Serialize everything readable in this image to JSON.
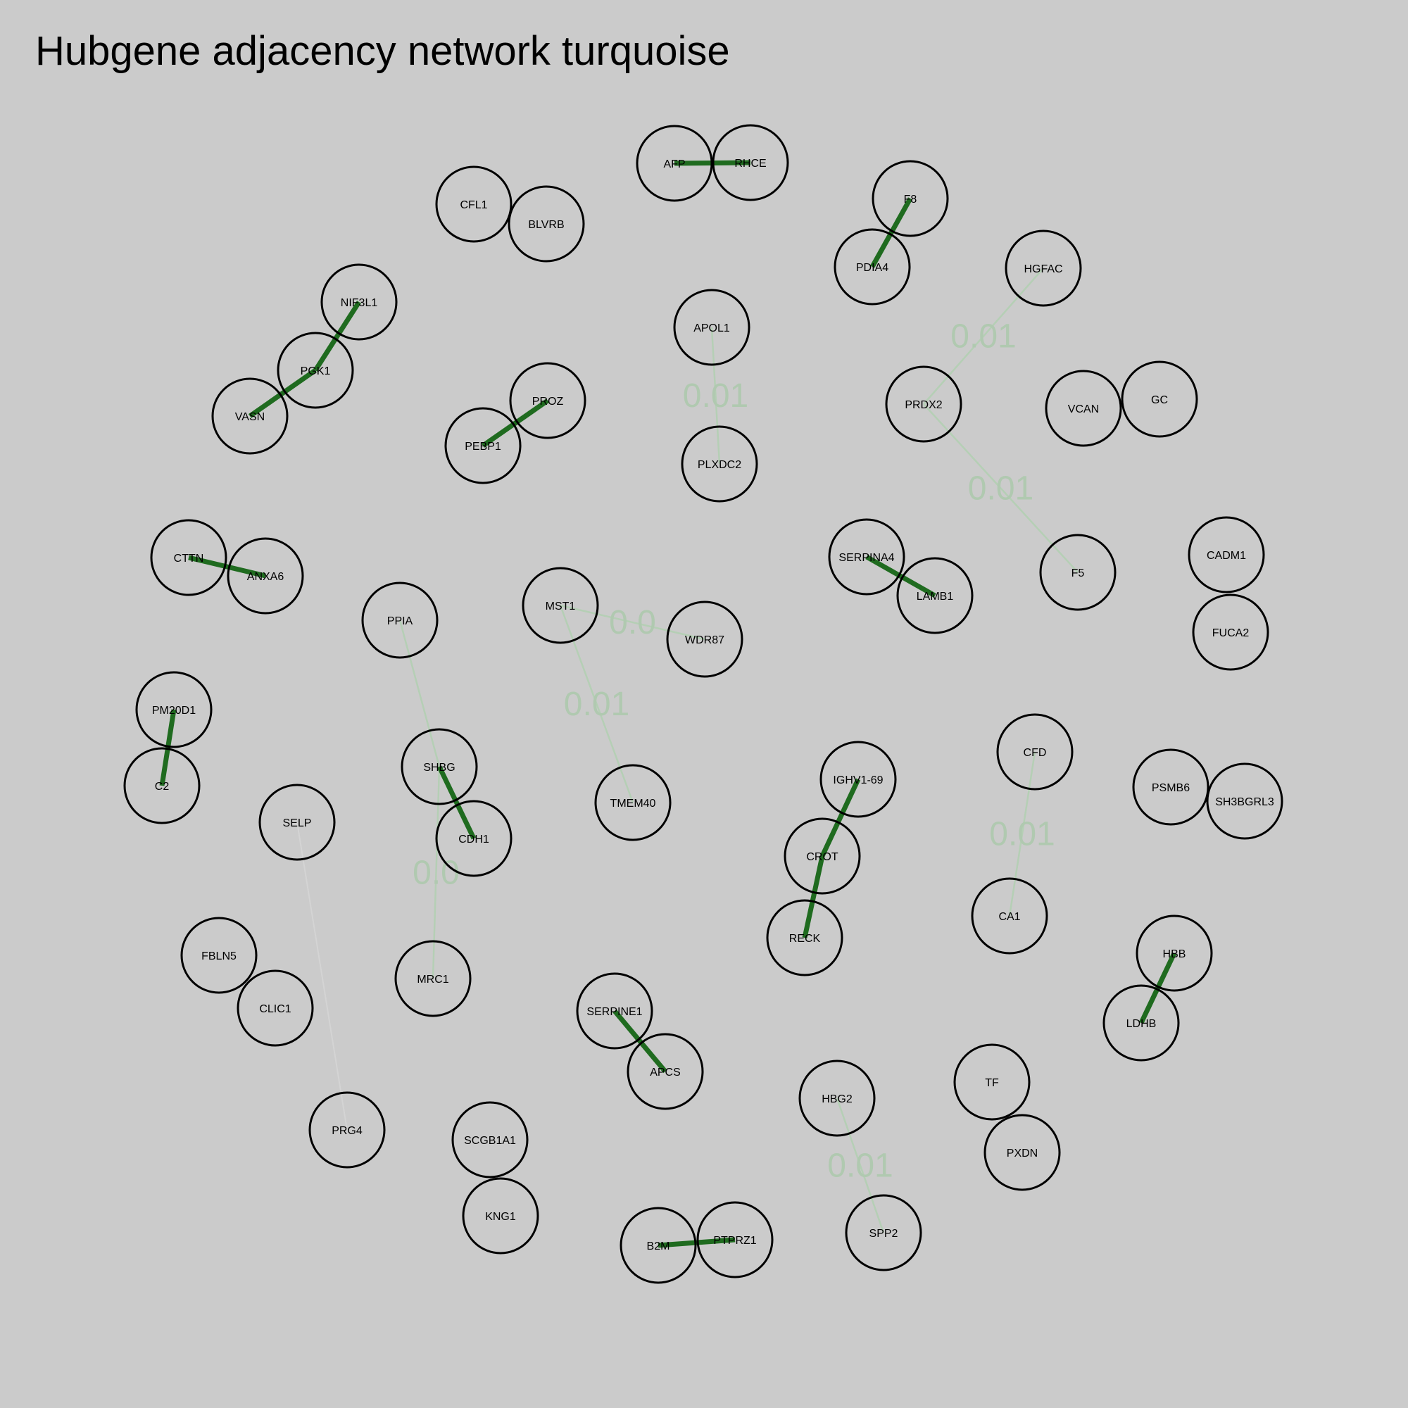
{
  "title": "Hubgene adjacency network turquoise",
  "colors": {
    "background": "#cbcbcb",
    "weak_edge": "#b5cfb5",
    "strong_edge": "#1f6b1f",
    "node_stroke": "#000000",
    "edge_label": "#b0c9b0"
  },
  "nodes": [
    {
      "id": "AFP",
      "label": "AFP"
    },
    {
      "id": "RHCE",
      "label": "RHCE"
    },
    {
      "id": "CFL1",
      "label": "CFL1"
    },
    {
      "id": "BLVRB",
      "label": "BLVRB"
    },
    {
      "id": "F8",
      "label": "F8"
    },
    {
      "id": "PDIA4",
      "label": "PDIA4"
    },
    {
      "id": "HGFAC",
      "label": "HGFAC"
    },
    {
      "id": "NIF3L1",
      "label": "NIF3L1"
    },
    {
      "id": "PGK1",
      "label": "PGK1"
    },
    {
      "id": "VASN",
      "label": "VASN"
    },
    {
      "id": "APOL1",
      "label": "APOL1"
    },
    {
      "id": "PROZ",
      "label": "PROZ"
    },
    {
      "id": "PEBP1",
      "label": "PEBP1"
    },
    {
      "id": "PLXDC2",
      "label": "PLXDC2"
    },
    {
      "id": "PRDX2",
      "label": "PRDX2"
    },
    {
      "id": "VCAN",
      "label": "VCAN"
    },
    {
      "id": "GC",
      "label": "GC"
    },
    {
      "id": "CTTN",
      "label": "CTTN"
    },
    {
      "id": "ANXA6",
      "label": "ANXA6"
    },
    {
      "id": "SERPINA4",
      "label": "SERPINA4"
    },
    {
      "id": "LAMB1",
      "label": "LAMB1"
    },
    {
      "id": "F5",
      "label": "F5"
    },
    {
      "id": "CADM1",
      "label": "CADM1"
    },
    {
      "id": "FUCA2",
      "label": "FUCA2"
    },
    {
      "id": "PPIA",
      "label": "PPIA"
    },
    {
      "id": "MST1",
      "label": "MST1"
    },
    {
      "id": "WDR87",
      "label": "WDR87"
    },
    {
      "id": "PM20D1",
      "label": "PM20D1"
    },
    {
      "id": "C2",
      "label": "C2"
    },
    {
      "id": "SHBG",
      "label": "SHBG"
    },
    {
      "id": "CDH1",
      "label": "CDH1"
    },
    {
      "id": "TMEM40",
      "label": "TMEM40"
    },
    {
      "id": "IGHV1-69",
      "label": "IGHV1-69"
    },
    {
      "id": "CFD",
      "label": "CFD"
    },
    {
      "id": "PSMB6",
      "label": "PSMB6"
    },
    {
      "id": "SH3BGRL3",
      "label": "SH3BGRL3"
    },
    {
      "id": "SELP",
      "label": "SELP"
    },
    {
      "id": "CROT",
      "label": "CROT"
    },
    {
      "id": "CA1",
      "label": "CA1"
    },
    {
      "id": "RECK",
      "label": "RECK"
    },
    {
      "id": "FBLN5",
      "label": "FBLN5"
    },
    {
      "id": "CLIC1",
      "label": "CLIC1"
    },
    {
      "id": "MRC1",
      "label": "MRC1"
    },
    {
      "id": "HBB",
      "label": "HBB"
    },
    {
      "id": "LDHB",
      "label": "LDHB"
    },
    {
      "id": "SERPINE1",
      "label": "SERPINE1"
    },
    {
      "id": "APCS",
      "label": "APCS"
    },
    {
      "id": "TF",
      "label": "TF"
    },
    {
      "id": "HBG2",
      "label": "HBG2"
    },
    {
      "id": "PXDN",
      "label": "PXDN"
    },
    {
      "id": "PRG4",
      "label": "PRG4"
    },
    {
      "id": "SCGB1A1",
      "label": "SCGB1A1"
    },
    {
      "id": "KNG1",
      "label": "KNG1"
    },
    {
      "id": "B2M",
      "label": "B2M"
    },
    {
      "id": "PTPRZ1",
      "label": "PTPRZ1"
    },
    {
      "id": "SPP2",
      "label": "SPP2"
    }
  ],
  "edges": [
    {
      "source": "HGFAC",
      "target": "PRDX2",
      "weight_label": "0.01",
      "strength": "weak"
    },
    {
      "source": "PRDX2",
      "target": "F5",
      "weight_label": "0.01",
      "strength": "weak"
    },
    {
      "source": "APOL1",
      "target": "PLXDC2",
      "weight_label": "0.01",
      "strength": "weak"
    },
    {
      "source": "MST1",
      "target": "WDR87",
      "weight_label": "0.0",
      "strength": "weak"
    },
    {
      "source": "MST1",
      "target": "TMEM40",
      "weight_label": "0.01",
      "strength": "weak"
    },
    {
      "source": "PPIA",
      "target": "SHBG",
      "weight_label": "",
      "strength": "weak"
    },
    {
      "source": "SHBG",
      "target": "MRC1",
      "weight_label": "0.0",
      "strength": "weak"
    },
    {
      "source": "CFD",
      "target": "CA1",
      "weight_label": "0.01",
      "strength": "weak"
    },
    {
      "source": "HBG2",
      "target": "SPP2",
      "weight_label": "0.01",
      "strength": "weak"
    },
    {
      "source": "SELP",
      "target": "PRG4",
      "weight_label": "",
      "strength": "faint"
    },
    {
      "source": "AFP",
      "target": "RHCE",
      "weight_label": "",
      "strength": "strong"
    },
    {
      "source": "F8",
      "target": "PDIA4",
      "weight_label": "",
      "strength": "strong"
    },
    {
      "source": "NIF3L1",
      "target": "PGK1",
      "weight_label": "",
      "strength": "strong"
    },
    {
      "source": "PGK1",
      "target": "VASN",
      "weight_label": "",
      "strength": "strong"
    },
    {
      "source": "PROZ",
      "target": "PEBP1",
      "weight_label": "",
      "strength": "strong"
    },
    {
      "source": "CTTN",
      "target": "ANXA6",
      "weight_label": "",
      "strength": "strong"
    },
    {
      "source": "SERPINA4",
      "target": "LAMB1",
      "weight_label": "",
      "strength": "strong"
    },
    {
      "source": "PM20D1",
      "target": "C2",
      "weight_label": "",
      "strength": "strong"
    },
    {
      "source": "SHBG",
      "target": "CDH1",
      "weight_label": "",
      "strength": "strong"
    },
    {
      "source": "IGHV1-69",
      "target": "CROT",
      "weight_label": "",
      "strength": "strong"
    },
    {
      "source": "CROT",
      "target": "RECK",
      "weight_label": "",
      "strength": "strong"
    },
    {
      "source": "HBB",
      "target": "LDHB",
      "weight_label": "",
      "strength": "strong"
    },
    {
      "source": "SERPINE1",
      "target": "APCS",
      "weight_label": "",
      "strength": "strong"
    },
    {
      "source": "B2M",
      "target": "PTPRZ1",
      "weight_label": "",
      "strength": "strong"
    }
  ]
}
